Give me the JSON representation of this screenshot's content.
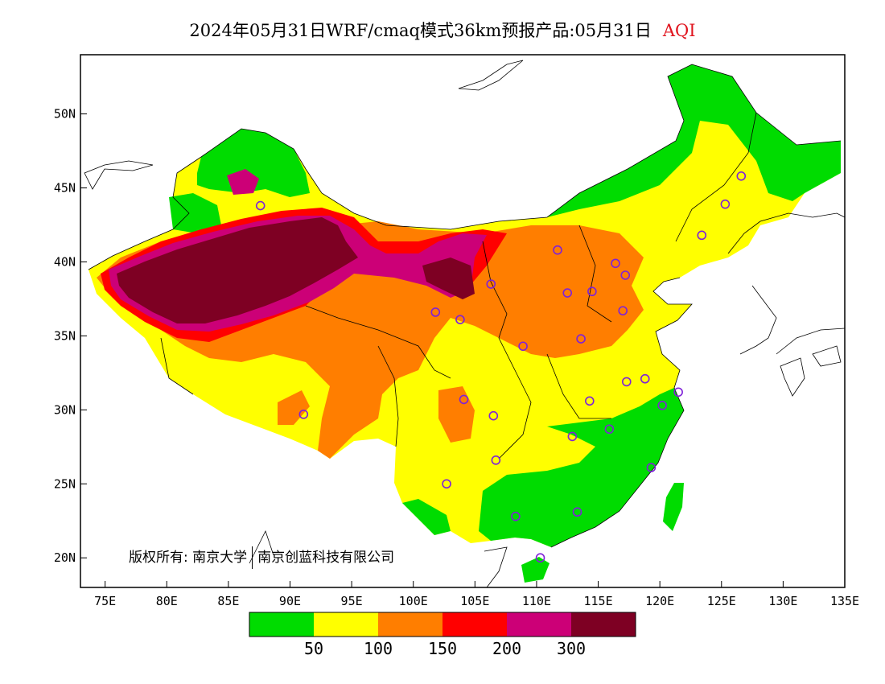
{
  "title": {
    "main": "2024年05月31日WRF/cmaq模式36km预报产品:05月31日",
    "product": "AQI",
    "product_color": "#e0141e"
  },
  "copyright": {
    "prefix": "版权所有:",
    "org1": "南京大学",
    "org2": "南京创蓝科技有限公司"
  },
  "map": {
    "lon_range": [
      73,
      135
    ],
    "lat_range": [
      18,
      54
    ],
    "lat_ticks": [
      {
        "value": 20,
        "label": "20N"
      },
      {
        "value": 25,
        "label": "25N"
      },
      {
        "value": 30,
        "label": "30N"
      },
      {
        "value": 35,
        "label": "35N"
      },
      {
        "value": 40,
        "label": "40N"
      },
      {
        "value": 45,
        "label": "45N"
      },
      {
        "value": 50,
        "label": "50N"
      }
    ],
    "lon_ticks": [
      {
        "value": 75,
        "label": "75E"
      },
      {
        "value": 80,
        "label": "80E"
      },
      {
        "value": 85,
        "label": "85E"
      },
      {
        "value": 90,
        "label": "90E"
      },
      {
        "value": 95,
        "label": "95E"
      },
      {
        "value": 100,
        "label": "100E"
      },
      {
        "value": 105,
        "label": "105E"
      },
      {
        "value": 110,
        "label": "110E"
      },
      {
        "value": 115,
        "label": "115E"
      },
      {
        "value": 120,
        "label": "120E"
      },
      {
        "value": 125,
        "label": "125E"
      },
      {
        "value": 130,
        "label": "130E"
      },
      {
        "value": 135,
        "label": "135E"
      }
    ],
    "legend": {
      "colors": [
        "#00dc00",
        "#ffff00",
        "#ff7e00",
        "#ff0000",
        "#cc0077",
        "#7e0023"
      ],
      "labels": [
        "50",
        "100",
        "150",
        "200",
        "300"
      ]
    },
    "station_color": "#7f22d8",
    "stations": [
      {
        "lon": 87.6,
        "lat": 43.8
      },
      {
        "lon": 91.1,
        "lat": 29.7
      },
      {
        "lon": 101.8,
        "lat": 36.6
      },
      {
        "lon": 103.8,
        "lat": 36.1
      },
      {
        "lon": 106.3,
        "lat": 38.5
      },
      {
        "lon": 111.7,
        "lat": 40.8
      },
      {
        "lon": 112.5,
        "lat": 37.9
      },
      {
        "lon": 114.5,
        "lat": 38.0
      },
      {
        "lon": 116.4,
        "lat": 39.9
      },
      {
        "lon": 117.2,
        "lat": 39.1
      },
      {
        "lon": 117.0,
        "lat": 36.7
      },
      {
        "lon": 113.6,
        "lat": 34.8
      },
      {
        "lon": 108.9,
        "lat": 34.3
      },
      {
        "lon": 104.1,
        "lat": 30.7
      },
      {
        "lon": 106.5,
        "lat": 29.6
      },
      {
        "lon": 106.7,
        "lat": 26.6
      },
      {
        "lon": 102.7,
        "lat": 25.0
      },
      {
        "lon": 108.3,
        "lat": 22.8
      },
      {
        "lon": 110.3,
        "lat": 20.0
      },
      {
        "lon": 113.3,
        "lat": 23.1
      },
      {
        "lon": 112.9,
        "lat": 28.2
      },
      {
        "lon": 114.3,
        "lat": 30.6
      },
      {
        "lon": 115.9,
        "lat": 28.7
      },
      {
        "lon": 119.3,
        "lat": 26.1
      },
      {
        "lon": 120.2,
        "lat": 30.3
      },
      {
        "lon": 117.3,
        "lat": 31.9
      },
      {
        "lon": 118.8,
        "lat": 32.1
      },
      {
        "lon": 121.5,
        "lat": 31.2
      },
      {
        "lon": 123.4,
        "lat": 41.8
      },
      {
        "lon": 125.3,
        "lat": 43.9
      },
      {
        "lon": 126.6,
        "lat": 45.8
      }
    ]
  }
}
